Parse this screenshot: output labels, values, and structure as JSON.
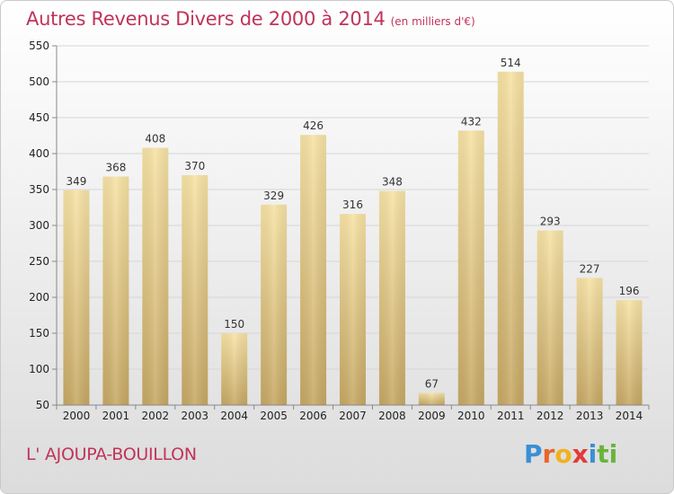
{
  "header": {
    "title": "Autres Revenus Divers de 2000 à 2014",
    "subtitle": "(en milliers d'€)"
  },
  "footer": {
    "place": "L' AJOUPA-BOUILLON",
    "logo": "Proxiti"
  },
  "colors": {
    "accent": "#c0345a",
    "bar_light": "#f7e3a5",
    "bar_dark": "#c7a864",
    "logo_letters": [
      "#3a8fd4",
      "#e8662a",
      "#f0b21c",
      "#e23a3a",
      "#3a8fd4",
      "#6ab43a",
      "#6ab43a"
    ]
  },
  "chart_data": {
    "type": "bar",
    "title": "Autres Revenus Divers de 2000 à 2014",
    "subtitle": "(en milliers d'€)",
    "categories": [
      "2000",
      "2001",
      "2002",
      "2003",
      "2004",
      "2005",
      "2006",
      "2007",
      "2008",
      "2009",
      "2010",
      "2011",
      "2012",
      "2013",
      "2014"
    ],
    "values": [
      349,
      368,
      408,
      370,
      150,
      329,
      426,
      316,
      348,
      67,
      432,
      514,
      293,
      227,
      196
    ],
    "ylim": [
      50,
      550
    ],
    "yticks": [
      50,
      100,
      150,
      200,
      250,
      300,
      350,
      400,
      450,
      500,
      550
    ],
    "grid": true,
    "legend": "none"
  }
}
